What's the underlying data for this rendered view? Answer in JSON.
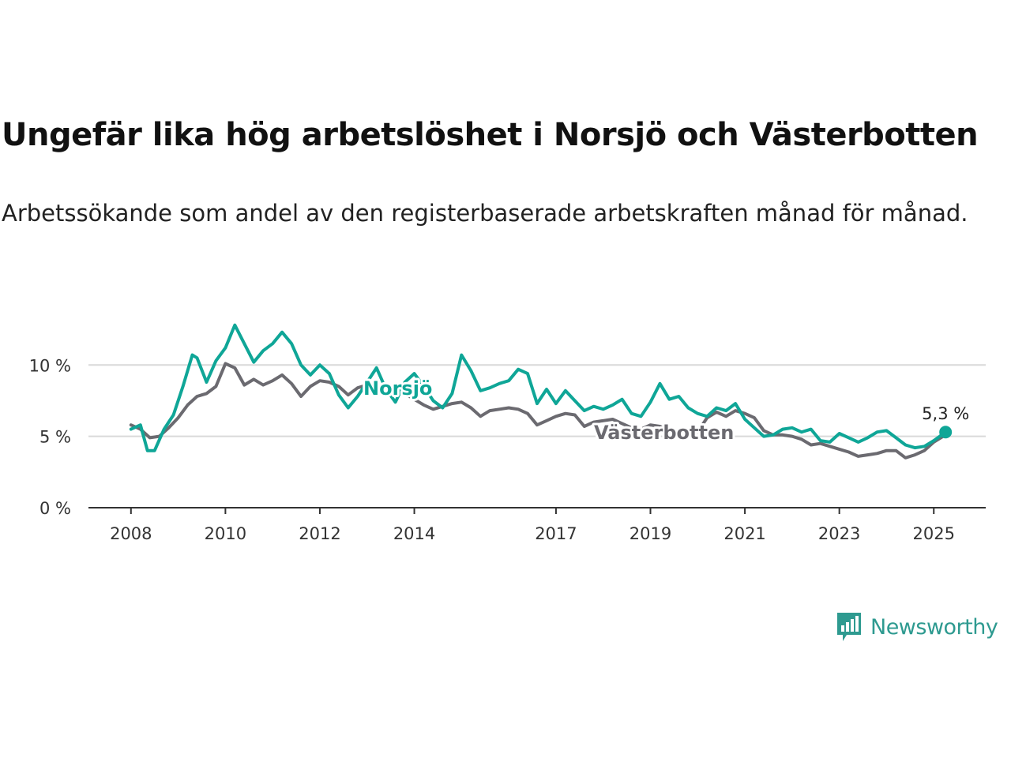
{
  "header": {
    "title": "Ungefär lika hög arbetslöshet i Norsjö och Västerbotten",
    "subtitle": "Arbetssökande som andel av den registerbaserade arbetskraften månad för månad."
  },
  "brand": {
    "name": "Newsworthy",
    "icon": "newsworthy-logo-icon"
  },
  "colors": {
    "norsjo": "#0fa697",
    "vasterbotten": "#6b6a70",
    "grid": "#d9d9d9",
    "axis": "#333333"
  },
  "chart_data": {
    "type": "line",
    "x_unit": "year (decimal)",
    "y_unit": "%",
    "xlim": [
      2007.1,
      2026.1
    ],
    "ylim": [
      0,
      14
    ],
    "y_ticks": [
      {
        "value": 0,
        "label": "0 %"
      },
      {
        "value": 5,
        "label": "5 %"
      },
      {
        "value": 10,
        "label": "10 %"
      }
    ],
    "x_ticks": [
      {
        "value": 2008,
        "label": "2008"
      },
      {
        "value": 2010,
        "label": "2010"
      },
      {
        "value": 2012,
        "label": "2012"
      },
      {
        "value": 2014,
        "label": "2014"
      },
      {
        "value": 2017,
        "label": "2017"
      },
      {
        "value": 2019,
        "label": "2019"
      },
      {
        "value": 2021,
        "label": "2021"
      },
      {
        "value": 2023,
        "label": "2023"
      },
      {
        "value": 2025,
        "label": "2025"
      }
    ],
    "grid": "horizontal",
    "series": [
      {
        "name": "Västerbotten",
        "label": "Västerbotten",
        "color": "#6b6a70",
        "points": [
          [
            2008.0,
            5.8
          ],
          [
            2008.2,
            5.5
          ],
          [
            2008.4,
            4.9
          ],
          [
            2008.6,
            5.0
          ],
          [
            2008.8,
            5.6
          ],
          [
            2009.0,
            6.3
          ],
          [
            2009.2,
            7.2
          ],
          [
            2009.4,
            7.8
          ],
          [
            2009.6,
            8.0
          ],
          [
            2009.8,
            8.5
          ],
          [
            2010.0,
            10.1
          ],
          [
            2010.2,
            9.8
          ],
          [
            2010.4,
            8.6
          ],
          [
            2010.6,
            9.0
          ],
          [
            2010.8,
            8.6
          ],
          [
            2011.0,
            8.9
          ],
          [
            2011.2,
            9.3
          ],
          [
            2011.4,
            8.7
          ],
          [
            2011.6,
            7.8
          ],
          [
            2011.8,
            8.5
          ],
          [
            2012.0,
            8.9
          ],
          [
            2012.2,
            8.8
          ],
          [
            2012.4,
            8.5
          ],
          [
            2012.6,
            7.9
          ],
          [
            2012.8,
            8.4
          ],
          [
            2013.0,
            8.6
          ],
          [
            2013.2,
            8.4
          ],
          [
            2013.4,
            8.2
          ],
          [
            2013.6,
            8.5
          ],
          [
            2013.8,
            8.0
          ],
          [
            2014.0,
            7.6
          ],
          [
            2014.2,
            7.2
          ],
          [
            2014.4,
            6.9
          ],
          [
            2014.6,
            7.1
          ],
          [
            2014.8,
            7.3
          ],
          [
            2015.0,
            7.4
          ],
          [
            2015.2,
            7.0
          ],
          [
            2015.4,
            6.4
          ],
          [
            2015.6,
            6.8
          ],
          [
            2015.8,
            6.9
          ],
          [
            2016.0,
            7.0
          ],
          [
            2016.2,
            6.9
          ],
          [
            2016.4,
            6.6
          ],
          [
            2016.6,
            5.8
          ],
          [
            2016.8,
            6.1
          ],
          [
            2017.0,
            6.4
          ],
          [
            2017.2,
            6.6
          ],
          [
            2017.4,
            6.5
          ],
          [
            2017.6,
            5.7
          ],
          [
            2017.8,
            6.0
          ],
          [
            2018.0,
            6.1
          ],
          [
            2018.2,
            6.2
          ],
          [
            2018.4,
            5.9
          ],
          [
            2018.6,
            5.6
          ],
          [
            2018.8,
            5.5
          ],
          [
            2019.0,
            5.8
          ],
          [
            2019.2,
            5.7
          ],
          [
            2019.4,
            5.4
          ],
          [
            2019.6,
            5.2
          ],
          [
            2019.8,
            5.3
          ],
          [
            2020.0,
            5.3
          ],
          [
            2020.2,
            6.3
          ],
          [
            2020.4,
            6.7
          ],
          [
            2020.6,
            6.4
          ],
          [
            2020.8,
            6.8
          ],
          [
            2021.0,
            6.6
          ],
          [
            2021.2,
            6.3
          ],
          [
            2021.4,
            5.4
          ],
          [
            2021.6,
            5.1
          ],
          [
            2021.8,
            5.1
          ],
          [
            2022.0,
            5.0
          ],
          [
            2022.2,
            4.8
          ],
          [
            2022.4,
            4.4
          ],
          [
            2022.6,
            4.5
          ],
          [
            2022.8,
            4.3
          ],
          [
            2023.0,
            4.1
          ],
          [
            2023.2,
            3.9
          ],
          [
            2023.4,
            3.6
          ],
          [
            2023.6,
            3.7
          ],
          [
            2023.8,
            3.8
          ],
          [
            2024.0,
            4.0
          ],
          [
            2024.2,
            4.0
          ],
          [
            2024.4,
            3.5
          ],
          [
            2024.6,
            3.7
          ],
          [
            2024.8,
            4.0
          ],
          [
            2025.0,
            4.6
          ],
          [
            2025.2,
            5.0
          ]
        ]
      },
      {
        "name": "Norsjö",
        "label": "Norsjö",
        "color": "#0fa697",
        "end_label": "5,3 %",
        "points": [
          [
            2008.0,
            5.5
          ],
          [
            2008.2,
            5.8
          ],
          [
            2008.35,
            4.0
          ],
          [
            2008.5,
            4.0
          ],
          [
            2008.7,
            5.5
          ],
          [
            2008.9,
            6.5
          ],
          [
            2009.1,
            8.5
          ],
          [
            2009.3,
            10.7
          ],
          [
            2009.4,
            10.5
          ],
          [
            2009.6,
            8.8
          ],
          [
            2009.8,
            10.3
          ],
          [
            2010.0,
            11.2
          ],
          [
            2010.2,
            12.8
          ],
          [
            2010.4,
            11.5
          ],
          [
            2010.6,
            10.2
          ],
          [
            2010.8,
            11.0
          ],
          [
            2011.0,
            11.5
          ],
          [
            2011.2,
            12.3
          ],
          [
            2011.4,
            11.5
          ],
          [
            2011.6,
            10.0
          ],
          [
            2011.8,
            9.3
          ],
          [
            2012.0,
            10.0
          ],
          [
            2012.2,
            9.4
          ],
          [
            2012.4,
            7.9
          ],
          [
            2012.6,
            7.0
          ],
          [
            2012.8,
            7.8
          ],
          [
            2013.0,
            8.8
          ],
          [
            2013.2,
            9.8
          ],
          [
            2013.4,
            8.3
          ],
          [
            2013.6,
            7.4
          ],
          [
            2013.8,
            8.8
          ],
          [
            2014.0,
            9.4
          ],
          [
            2014.2,
            8.5
          ],
          [
            2014.4,
            7.5
          ],
          [
            2014.6,
            7.0
          ],
          [
            2014.8,
            8.0
          ],
          [
            2015.0,
            10.7
          ],
          [
            2015.2,
            9.6
          ],
          [
            2015.4,
            8.2
          ],
          [
            2015.6,
            8.4
          ],
          [
            2015.8,
            8.7
          ],
          [
            2016.0,
            8.9
          ],
          [
            2016.2,
            9.7
          ],
          [
            2016.4,
            9.4
          ],
          [
            2016.6,
            7.3
          ],
          [
            2016.8,
            8.3
          ],
          [
            2017.0,
            7.3
          ],
          [
            2017.2,
            8.2
          ],
          [
            2017.4,
            7.5
          ],
          [
            2017.6,
            6.8
          ],
          [
            2017.8,
            7.1
          ],
          [
            2018.0,
            6.9
          ],
          [
            2018.2,
            7.2
          ],
          [
            2018.4,
            7.6
          ],
          [
            2018.6,
            6.6
          ],
          [
            2018.8,
            6.4
          ],
          [
            2019.0,
            7.4
          ],
          [
            2019.2,
            8.7
          ],
          [
            2019.4,
            7.6
          ],
          [
            2019.6,
            7.8
          ],
          [
            2019.8,
            7.0
          ],
          [
            2020.0,
            6.6
          ],
          [
            2020.2,
            6.4
          ],
          [
            2020.4,
            7.0
          ],
          [
            2020.6,
            6.8
          ],
          [
            2020.8,
            7.3
          ],
          [
            2021.0,
            6.2
          ],
          [
            2021.2,
            5.6
          ],
          [
            2021.4,
            5.0
          ],
          [
            2021.6,
            5.1
          ],
          [
            2021.8,
            5.5
          ],
          [
            2022.0,
            5.6
          ],
          [
            2022.2,
            5.3
          ],
          [
            2022.4,
            5.5
          ],
          [
            2022.6,
            4.7
          ],
          [
            2022.8,
            4.6
          ],
          [
            2023.0,
            5.2
          ],
          [
            2023.2,
            4.9
          ],
          [
            2023.4,
            4.6
          ],
          [
            2023.6,
            4.9
          ],
          [
            2023.8,
            5.3
          ],
          [
            2024.0,
            5.4
          ],
          [
            2024.2,
            4.9
          ],
          [
            2024.4,
            4.4
          ],
          [
            2024.6,
            4.2
          ],
          [
            2024.8,
            4.3
          ],
          [
            2025.0,
            4.7
          ],
          [
            2025.25,
            5.3
          ]
        ]
      }
    ]
  }
}
